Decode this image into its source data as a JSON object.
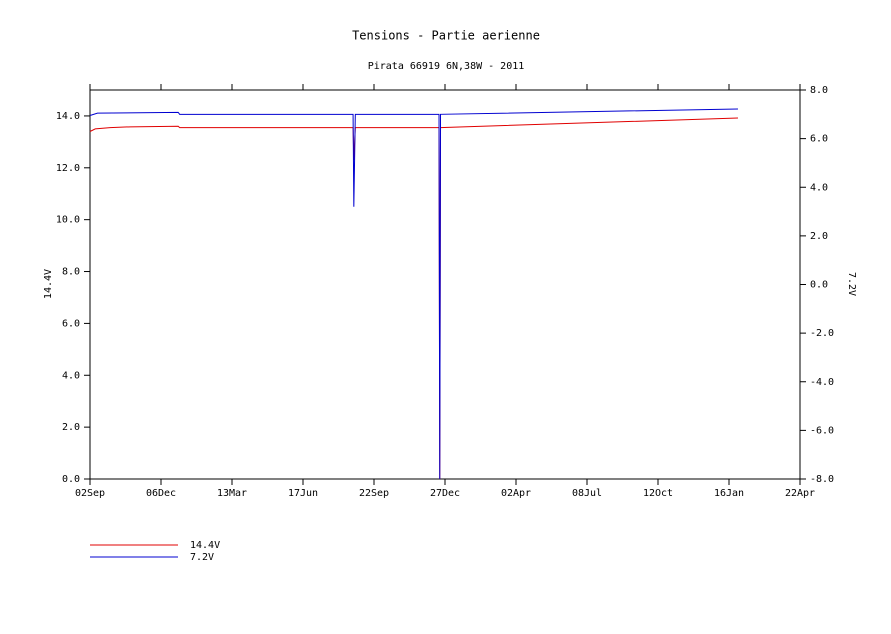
{
  "chart_data": {
    "type": "line",
    "title": "Tensions - Partie aerienne",
    "subtitle": "Pirata 66919 6N,38W - 2011",
    "y_label": "14.4V",
    "y2_label": "7.2V",
    "xlim": [
      0,
      950
    ],
    "xticks": [
      {
        "value": 0,
        "label": "02Sep"
      },
      {
        "value": 95,
        "label": "06Dec"
      },
      {
        "value": 190,
        "label": "13Mar"
      },
      {
        "value": 285,
        "label": "17Jun"
      },
      {
        "value": 380,
        "label": "22Sep"
      },
      {
        "value": 475,
        "label": "27Dec"
      },
      {
        "value": 570,
        "label": "02Apr"
      },
      {
        "value": 665,
        "label": "08Jul"
      },
      {
        "value": 760,
        "label": "12Oct"
      },
      {
        "value": 855,
        "label": "16Jan"
      },
      {
        "value": 950,
        "label": "22Apr"
      }
    ],
    "ylim": [
      0,
      15
    ],
    "yticks": [
      {
        "value": 0,
        "label": "0.0"
      },
      {
        "value": 2,
        "label": "2.0"
      },
      {
        "value": 4,
        "label": "4.0"
      },
      {
        "value": 6,
        "label": "6.0"
      },
      {
        "value": 8,
        "label": "8.0"
      },
      {
        "value": 10,
        "label": "10.0"
      },
      {
        "value": 12,
        "label": "12.0"
      },
      {
        "value": 14,
        "label": "14.0"
      }
    ],
    "y2lim": [
      -8,
      8
    ],
    "y2ticks": [
      {
        "value": -8,
        "label": "-8.0"
      },
      {
        "value": -6,
        "label": "-6.0"
      },
      {
        "value": -4,
        "label": "-4.0"
      },
      {
        "value": -2,
        "label": "-2.0"
      },
      {
        "value": 0,
        "label": "0.0"
      },
      {
        "value": 2,
        "label": "2.0"
      },
      {
        "value": 4,
        "label": "4.0"
      },
      {
        "value": 6,
        "label": "6.0"
      },
      {
        "value": 8,
        "label": "8.0"
      }
    ],
    "series": [
      {
        "name": "14.4V",
        "color": "#e00000",
        "x": [
          0,
          7,
          27,
          54,
          118,
          120,
          352,
          353,
          355,
          467,
          468,
          469,
          867
        ],
        "values": [
          13.4,
          13.5,
          13.55,
          13.58,
          13.6,
          13.55,
          13.55,
          12.3,
          13.55,
          13.55,
          0,
          13.55,
          13.92
        ]
      },
      {
        "name": "7.2V",
        "color": "#0000d0",
        "axis": "y2",
        "x": [
          0,
          10,
          118,
          120,
          352,
          353,
          355,
          467,
          468,
          469,
          867
        ],
        "values": [
          6.95,
          7.05,
          7.08,
          7.0,
          7.0,
          3.2,
          7.0,
          7.0,
          -8,
          7.0,
          7.22
        ]
      }
    ]
  }
}
